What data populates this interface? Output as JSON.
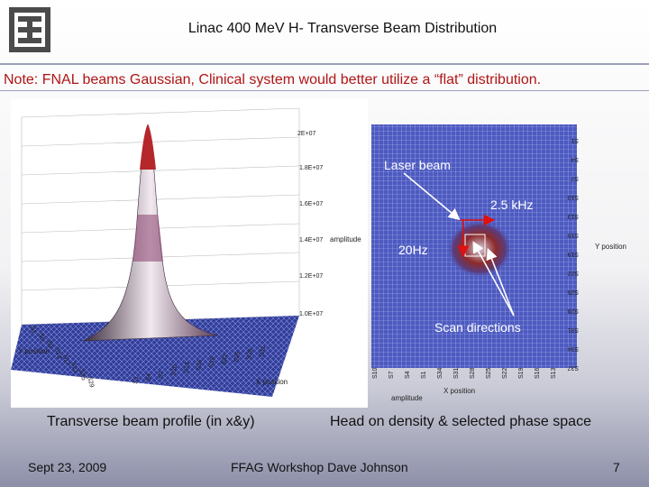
{
  "header": {
    "title": "Linac 400 MeV H- Transverse Beam Distribution",
    "logo_icon": "fermilab-logo-icon",
    "logo_color": "#4b4b4b"
  },
  "note": "Note: FNAL beams Gaussian, Clinical system would better utilize a “flat” distribution.",
  "left_figure": {
    "z_ticks": [
      "2E+07",
      "1.8E+07",
      "1.6E+07",
      "1.4E+07",
      "1.2E+07",
      "1.0E+07"
    ],
    "amplitude_label": "amplitude",
    "y_position_label": "Y position",
    "x_position_label": "X position",
    "y_ticks": [
      "S1",
      "S5",
      "S9",
      "S13",
      "S17",
      "S21",
      "S25",
      "S29"
    ],
    "x_ticks": [
      "S1",
      "S4",
      "S7",
      "S10",
      "S13",
      "S16",
      "S19",
      "S22",
      "S25",
      "S28",
      "S31"
    ],
    "caption": "Transverse beam profile (in x&y)"
  },
  "right_figure": {
    "laser_label": "Laser beam",
    "freq_x_label": "2.5 kHz",
    "freq_y_label": "20Hz",
    "scan_label": "Scan directions",
    "y_position_label": "Y position",
    "x_position_label": "X position",
    "amplitude_label": "amplitude",
    "x_ticks": [
      "S10",
      "S7",
      "S4",
      "S1",
      "S34",
      "S31",
      "S28",
      "S25",
      "S22",
      "S19",
      "S16",
      "S13"
    ],
    "y_ticks": [
      "S1",
      "S4",
      "S7",
      "S10",
      "S13",
      "S16",
      "S19",
      "S22",
      "S25",
      "S28",
      "S31",
      "S34",
      "S37"
    ],
    "caption": "Head on density & selected phase space",
    "laser_color": "#ffffff",
    "arrow_color": "#e01010"
  },
  "footer": {
    "date": "Sept 23, 2009",
    "event": "FFAG Workshop   Dave Johnson",
    "page": "7"
  }
}
